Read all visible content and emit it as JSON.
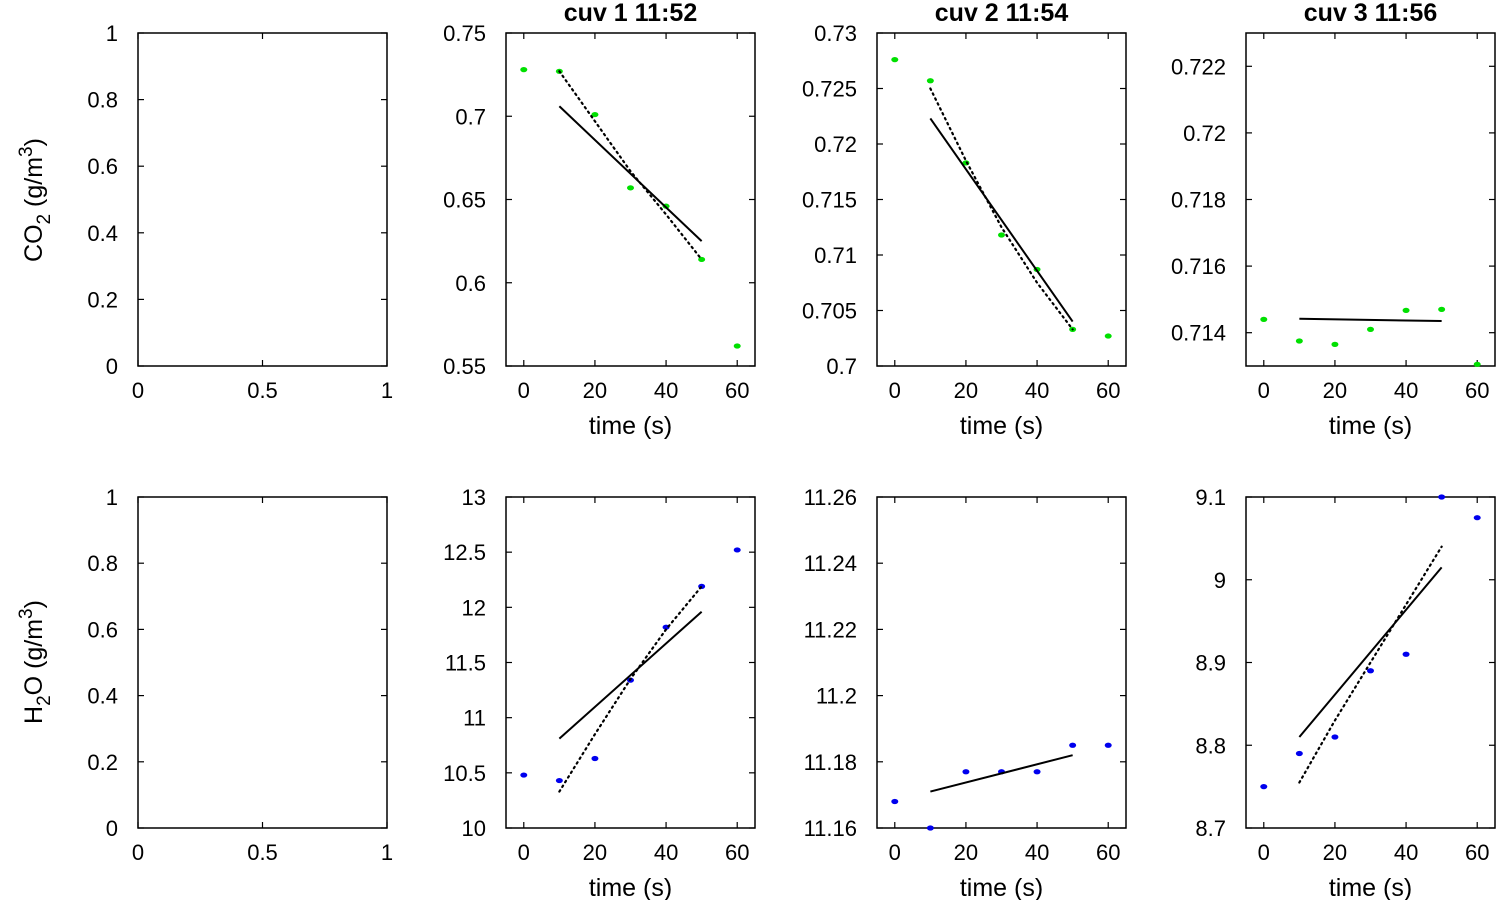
{
  "figure": {
    "co2_ylabel": {
      "main": "CO",
      "sub": "2",
      "rest": " (g/m",
      "sup": "3",
      "close": ")"
    },
    "h2o_ylabel": {
      "pre": "H",
      "sub": "2",
      "main": "O (g/m",
      "sup": "3",
      "close": ")"
    },
    "colors": {
      "co2_points": "#00e000",
      "h2o_points": "#0000ee",
      "fit": "#000000",
      "axes": "#000000"
    }
  },
  "chart_data": [
    {
      "id": "co2-empty",
      "type": "scatter",
      "title": "",
      "xlabel": "",
      "xlim": [
        0,
        1
      ],
      "ylim": [
        0,
        1
      ],
      "xticks": [
        "0",
        "0.5",
        "1"
      ],
      "yticks": [
        "0",
        "0.2",
        "0.4",
        "0.6",
        "0.8",
        "1"
      ],
      "series": []
    },
    {
      "id": "co2-cuv1",
      "type": "scatter",
      "title": "cuv 1 11:52",
      "xlabel": "time (s)",
      "xlim": [
        -5,
        65
      ],
      "ylim": [
        0.55,
        0.75
      ],
      "xticks": [
        "0",
        "20",
        "40",
        "60"
      ],
      "yticks": [
        "0.55",
        "0.6",
        "0.65",
        "0.7",
        "0.75"
      ],
      "series": [
        {
          "kind": "points",
          "color": "#00e000",
          "x": [
            0,
            10,
            20,
            30,
            40,
            50,
            60
          ],
          "y": [
            0.728,
            0.727,
            0.701,
            0.657,
            0.646,
            0.614,
            0.562
          ]
        },
        {
          "kind": "solid",
          "x": [
            10,
            50
          ],
          "y": [
            0.706,
            0.625
          ]
        },
        {
          "kind": "dotted",
          "x": [
            10,
            20,
            30,
            40,
            50
          ],
          "y": [
            0.727,
            0.697,
            0.667,
            0.641,
            0.614
          ]
        }
      ]
    },
    {
      "id": "co2-cuv2",
      "type": "scatter",
      "title": "cuv 2 11:54",
      "xlabel": "time (s)",
      "xlim": [
        -5,
        65
      ],
      "ylim": [
        0.7,
        0.73
      ],
      "xticks": [
        "0",
        "20",
        "40",
        "60"
      ],
      "yticks": [
        "0.7",
        "0.705",
        "0.71",
        "0.715",
        "0.72",
        "0.725",
        "0.73"
      ],
      "series": [
        {
          "kind": "points",
          "color": "#00e000",
          "x": [
            0,
            10,
            20,
            30,
            40,
            50,
            60
          ],
          "y": [
            0.7276,
            0.7257,
            0.7183,
            0.7118,
            0.7087,
            0.7033,
            0.7027
          ]
        },
        {
          "kind": "solid",
          "x": [
            10,
            50
          ],
          "y": [
            0.7223,
            0.704
          ]
        },
        {
          "kind": "dotted",
          "x": [
            10,
            20,
            30,
            40,
            50
          ],
          "y": [
            0.725,
            0.7185,
            0.7125,
            0.7075,
            0.7033
          ]
        }
      ]
    },
    {
      "id": "co2-cuv3",
      "type": "scatter",
      "title": "cuv 3 11:56",
      "xlabel": "time (s)",
      "xlim": [
        -5,
        65
      ],
      "ylim": [
        0.713,
        0.723
      ],
      "xticks": [
        "0",
        "20",
        "40",
        "60"
      ],
      "yticks": [
        "0.714",
        "0.716",
        "0.718",
        "0.72",
        "0.722"
      ],
      "series": [
        {
          "kind": "points",
          "color": "#00e000",
          "x": [
            0,
            10,
            20,
            30,
            40,
            50,
            60
          ],
          "y": [
            0.7144,
            0.71375,
            0.71365,
            0.7141,
            0.71467,
            0.7147,
            0.71305
          ]
        },
        {
          "kind": "solid",
          "x": [
            10,
            50
          ],
          "y": [
            0.71442,
            0.71435
          ]
        }
      ]
    },
    {
      "id": "h2o-empty",
      "type": "scatter",
      "title": "",
      "xlabel": "",
      "xlim": [
        0,
        1
      ],
      "ylim": [
        0,
        1
      ],
      "xticks": [
        "0",
        "0.5",
        "1"
      ],
      "yticks": [
        "0",
        "0.2",
        "0.4",
        "0.6",
        "0.8",
        "1"
      ],
      "series": []
    },
    {
      "id": "h2o-cuv1",
      "type": "scatter",
      "title": "",
      "xlabel": "time (s)",
      "xlim": [
        -5,
        65
      ],
      "ylim": [
        10,
        13
      ],
      "xticks": [
        "0",
        "20",
        "40",
        "60"
      ],
      "yticks": [
        "10",
        "10.5",
        "11",
        "11.5",
        "12",
        "12.5",
        "13"
      ],
      "series": [
        {
          "kind": "points",
          "color": "#0000ee",
          "x": [
            0,
            10,
            20,
            30,
            40,
            50,
            60
          ],
          "y": [
            10.48,
            10.43,
            10.63,
            11.34,
            11.82,
            12.19,
            12.52
          ]
        },
        {
          "kind": "solid",
          "x": [
            10,
            50
          ],
          "y": [
            10.81,
            11.96
          ]
        },
        {
          "kind": "dotted",
          "x": [
            10,
            20,
            30,
            40,
            50
          ],
          "y": [
            10.33,
            10.85,
            11.35,
            11.8,
            12.19
          ]
        }
      ]
    },
    {
      "id": "h2o-cuv2",
      "type": "scatter",
      "title": "",
      "xlabel": "time (s)",
      "xlim": [
        -5,
        65
      ],
      "ylim": [
        11.16,
        11.26
      ],
      "xticks": [
        "0",
        "20",
        "40",
        "60"
      ],
      "yticks": [
        "11.16",
        "11.18",
        "11.2",
        "11.22",
        "11.24",
        "11.26"
      ],
      "series": [
        {
          "kind": "points",
          "color": "#0000ee",
          "x": [
            0,
            10,
            20,
            30,
            40,
            50,
            60
          ],
          "y": [
            11.168,
            11.16,
            11.177,
            11.177,
            11.177,
            11.185,
            11.185
          ]
        },
        {
          "kind": "solid",
          "x": [
            10,
            50
          ],
          "y": [
            11.171,
            11.182
          ]
        }
      ]
    },
    {
      "id": "h2o-cuv3",
      "type": "scatter",
      "title": "",
      "xlabel": "time (s)",
      "xlim": [
        -5,
        65
      ],
      "ylim": [
        8.7,
        9.1
      ],
      "xticks": [
        "0",
        "20",
        "40",
        "60"
      ],
      "yticks": [
        "8.7",
        "8.8",
        "8.9",
        "9",
        "9.1"
      ],
      "series": [
        {
          "kind": "points",
          "color": "#0000ee",
          "x": [
            0,
            10,
            20,
            30,
            40,
            50,
            60
          ],
          "y": [
            8.75,
            8.79,
            8.81,
            8.89,
            8.91,
            9.1,
            9.075
          ]
        },
        {
          "kind": "solid",
          "x": [
            10,
            50
          ],
          "y": [
            8.81,
            9.015
          ]
        },
        {
          "kind": "dotted",
          "x": [
            10,
            20,
            30,
            40,
            50
          ],
          "y": [
            8.755,
            8.83,
            8.9,
            8.97,
            9.04
          ]
        }
      ]
    }
  ]
}
